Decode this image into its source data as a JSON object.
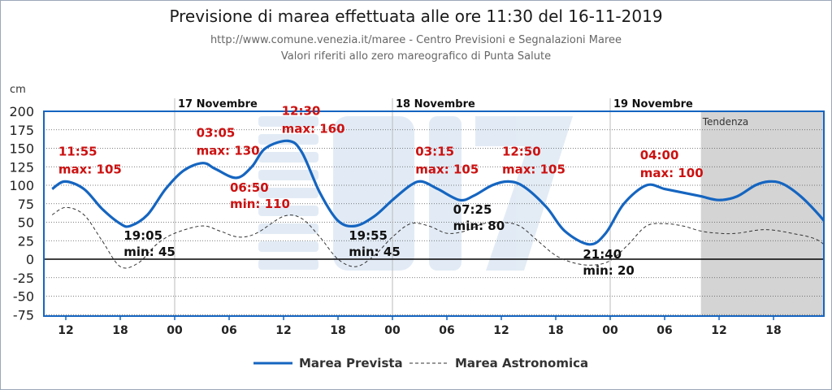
{
  "header": {
    "title": "Previsione di marea effettuata alle ore 11:30 del 16-11-2019",
    "subtitle_1": "http://www.comune.venezia.it/maree - Centro Previsioni e Segnalazioni Maree",
    "subtitle_2": "Valori riferiti allo zero mareografico di Punta Salute"
  },
  "chart_data": {
    "type": "line",
    "y_unit": "cm",
    "ylim": [
      -75,
      200
    ],
    "y_ticks": [
      200,
      175,
      150,
      125,
      100,
      75,
      50,
      25,
      0,
      -25,
      -50,
      -75
    ],
    "x_range_hours": [
      -2,
      70
    ],
    "x_ticks": [
      {
        "h": 0,
        "label": "12"
      },
      {
        "h": 6,
        "label": "18"
      },
      {
        "h": 12,
        "label": "00"
      },
      {
        "h": 18,
        "label": "06"
      },
      {
        "h": 24,
        "label": "12"
      },
      {
        "h": 30,
        "label": "18"
      },
      {
        "h": 36,
        "label": "00"
      },
      {
        "h": 42,
        "label": "06"
      },
      {
        "h": 48,
        "label": "12"
      },
      {
        "h": 54,
        "label": "18"
      },
      {
        "h": 60,
        "label": "00"
      },
      {
        "h": 66,
        "label": "06"
      },
      {
        "h": 72,
        "label": "12"
      },
      {
        "h": 78,
        "label": "18"
      }
    ],
    "day_labels": [
      {
        "h": 12,
        "label": "17 Novembre"
      },
      {
        "h": 36,
        "label": "18 Novembre"
      },
      {
        "h": 60,
        "label": "19 Novembre"
      }
    ],
    "tendency": {
      "from_h": 70,
      "label": "Tendenza"
    },
    "grid": true,
    "legend_position": "bottom",
    "series": [
      {
        "name": "Marea Prevista",
        "color": "#1565c0",
        "style": "solid",
        "points": [
          [
            -1.5,
            95
          ],
          [
            -0.1,
            105
          ],
          [
            2,
            95
          ],
          [
            4,
            68
          ],
          [
            6,
            48
          ],
          [
            7.1,
            45
          ],
          [
            9,
            60
          ],
          [
            11,
            95
          ],
          [
            13,
            120
          ],
          [
            15.1,
            130
          ],
          [
            16.5,
            122
          ],
          [
            18.8,
            110
          ],
          [
            20.5,
            125
          ],
          [
            22,
            150
          ],
          [
            24.5,
            160
          ],
          [
            26,
            145
          ],
          [
            28,
            90
          ],
          [
            30,
            52
          ],
          [
            31.9,
            45
          ],
          [
            34,
            58
          ],
          [
            36,
            80
          ],
          [
            38,
            100
          ],
          [
            39.25,
            105
          ],
          [
            41,
            95
          ],
          [
            43.4,
            80
          ],
          [
            45,
            86
          ],
          [
            47,
            100
          ],
          [
            48.8,
            105
          ],
          [
            50.5,
            98
          ],
          [
            53,
            70
          ],
          [
            55,
            38
          ],
          [
            57.7,
            20
          ],
          [
            59.5,
            35
          ],
          [
            61.5,
            75
          ],
          [
            64,
            100
          ],
          [
            66,
            95
          ],
          [
            68,
            90
          ],
          [
            70,
            85
          ],
          [
            72,
            80
          ],
          [
            74,
            85
          ],
          [
            76,
            100
          ],
          [
            77.5,
            105
          ],
          [
            79,
            102
          ],
          [
            81,
            85
          ],
          [
            83,
            60
          ],
          [
            85,
            30
          ]
        ]
      },
      {
        "name": "Marea Astronomica",
        "color": "#333333",
        "style": "dashed",
        "points": [
          [
            -1.5,
            60
          ],
          [
            0,
            70
          ],
          [
            2,
            60
          ],
          [
            4,
            25
          ],
          [
            6,
            -10
          ],
          [
            8,
            -5
          ],
          [
            10,
            20
          ],
          [
            12,
            35
          ],
          [
            15,
            45
          ],
          [
            17,
            38
          ],
          [
            19,
            30
          ],
          [
            21,
            35
          ],
          [
            24,
            58
          ],
          [
            26,
            55
          ],
          [
            28,
            30
          ],
          [
            30,
            0
          ],
          [
            32,
            -10
          ],
          [
            34,
            5
          ],
          [
            36,
            30
          ],
          [
            38,
            48
          ],
          [
            40,
            45
          ],
          [
            42,
            35
          ],
          [
            44,
            38
          ],
          [
            46,
            48
          ],
          [
            48,
            50
          ],
          [
            50,
            45
          ],
          [
            52,
            25
          ],
          [
            54,
            5
          ],
          [
            56,
            -5
          ],
          [
            58,
            -8
          ],
          [
            60,
            -2
          ],
          [
            62,
            20
          ],
          [
            64,
            45
          ],
          [
            66,
            48
          ],
          [
            68,
            45
          ],
          [
            70,
            38
          ],
          [
            72,
            35
          ],
          [
            74,
            35
          ],
          [
            77,
            40
          ],
          [
            80,
            35
          ],
          [
            83,
            25
          ],
          [
            85,
            0
          ]
        ]
      }
    ],
    "annotations": [
      {
        "kind": "max",
        "time": "11:55",
        "value_label": "max: 105",
        "h": -0.1
      },
      {
        "kind": "min",
        "time": "19:05",
        "value_label": "min: 45",
        "h": 7.1
      },
      {
        "kind": "max",
        "time": "03:05",
        "value_label": "max: 130",
        "h": 15.1
      },
      {
        "kind": "min",
        "time": "06:50",
        "value_label": "min: 110",
        "h": 18.8
      },
      {
        "kind": "max",
        "time": "12:30",
        "value_label": "max: 160",
        "h": 24.5
      },
      {
        "kind": "min",
        "time": "19:55",
        "value_label": "min: 45",
        "h": 31.9
      },
      {
        "kind": "max",
        "time": "03:15",
        "value_label": "max: 105",
        "h": 39.25
      },
      {
        "kind": "min",
        "time": "07:25",
        "value_label": "min: 80",
        "h": 43.4
      },
      {
        "kind": "max",
        "time": "12:50",
        "value_label": "max: 105",
        "h": 48.8
      },
      {
        "kind": "min",
        "time": "21:40",
        "value_label": "min: 20",
        "h": 57.7
      },
      {
        "kind": "max",
        "time": "04:00",
        "value_label": "max: 100",
        "h": 64
      }
    ],
    "colors": {
      "max_label": "#cc1111",
      "min_label": "#111111",
      "tendency_fill": "#d4d4d4",
      "axis_frame": "#1565c0"
    }
  },
  "legend": {
    "forecast_label": "Marea Prevista",
    "astro_label": "Marea Astronomica"
  }
}
